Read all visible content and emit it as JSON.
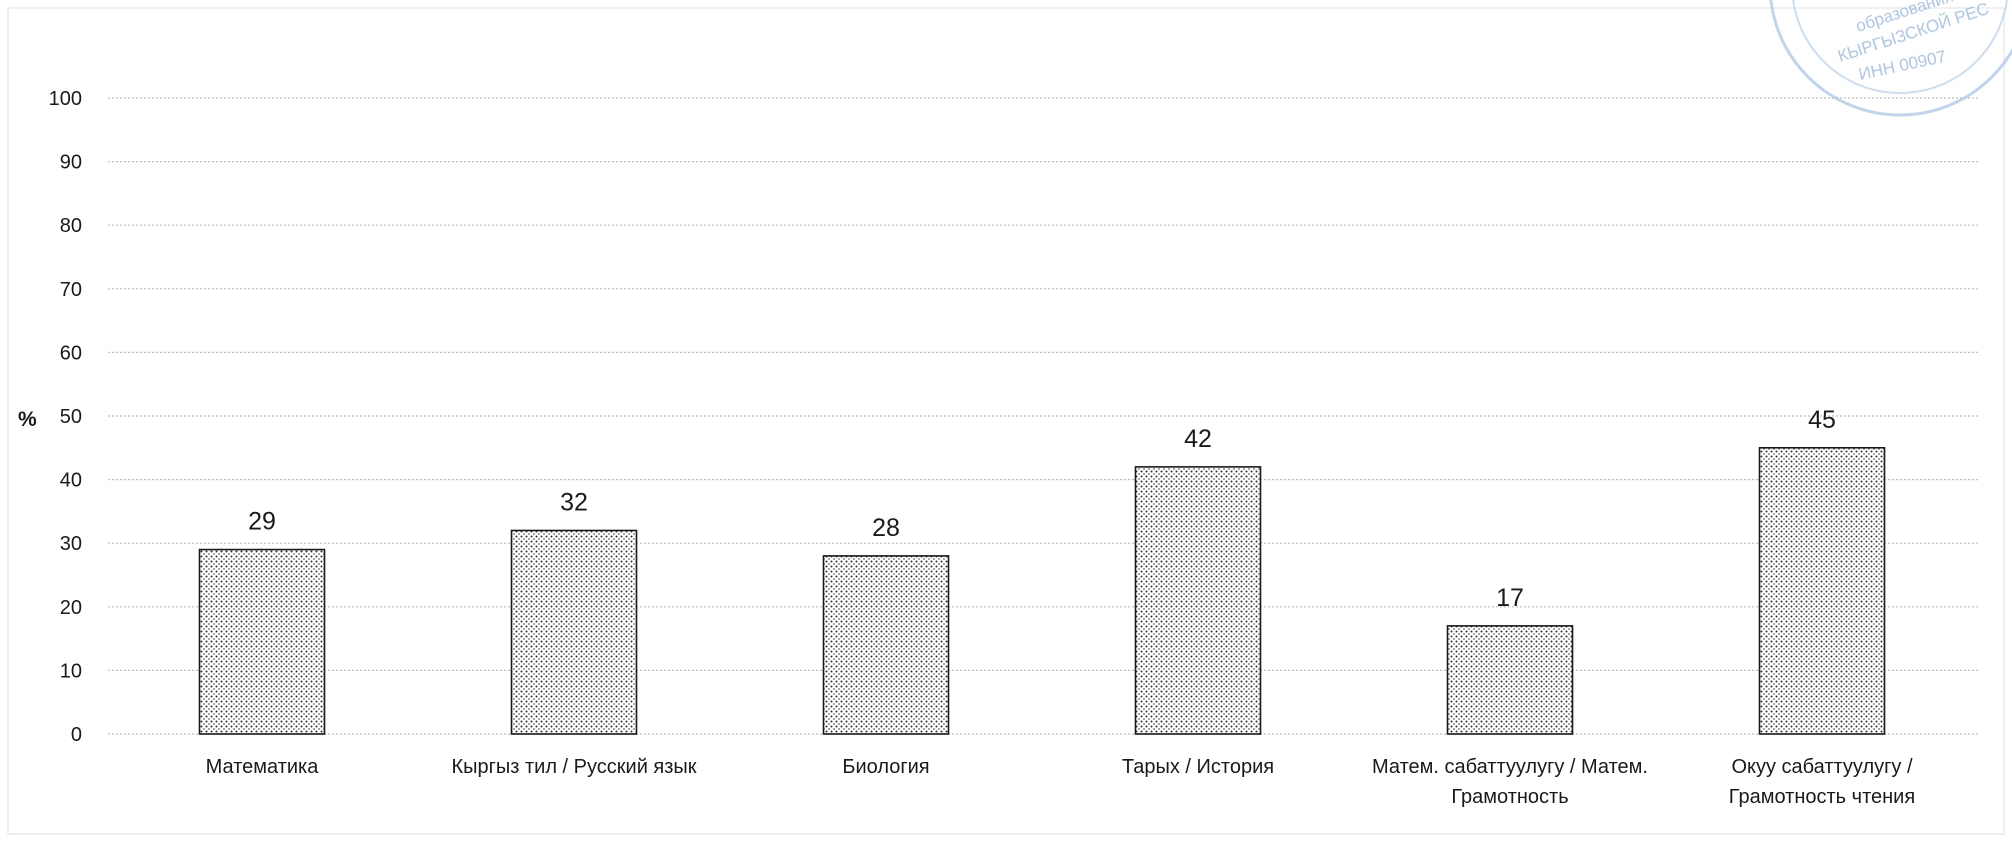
{
  "chart_data": {
    "type": "bar",
    "title": "",
    "xlabel": "",
    "ylabel": "%",
    "categories": [
      [
        "Математика"
      ],
      [
        "Кыргыз тил / Русский язык"
      ],
      [
        "Биология"
      ],
      [
        "Тарых / История"
      ],
      [
        "Матем. сабаттуулугу / Матем.",
        "Грамотность"
      ],
      [
        "Окуу сабаттуулугу /",
        "Грамотность чтения"
      ]
    ],
    "values": [
      29,
      32,
      28,
      42,
      17,
      45
    ],
    "data_labels": [
      "29",
      "32",
      "28",
      "42",
      "17",
      "45"
    ],
    "ylim": [
      0,
      100
    ],
    "yticks": [
      0,
      10,
      20,
      30,
      40,
      50,
      60,
      70,
      80,
      90,
      100
    ],
    "grid": true,
    "bar_fill": "dotted",
    "bar_color": "#ffffff",
    "bar_stroke": "#1a1a1a",
    "grid_color": "#bdbdbd"
  },
  "stamp": {
    "color": "#8fb4e0",
    "lines": [
      "образования",
      "КЫРГЫЗСКОЙ РЕС",
      "ИНН 00907"
    ]
  }
}
